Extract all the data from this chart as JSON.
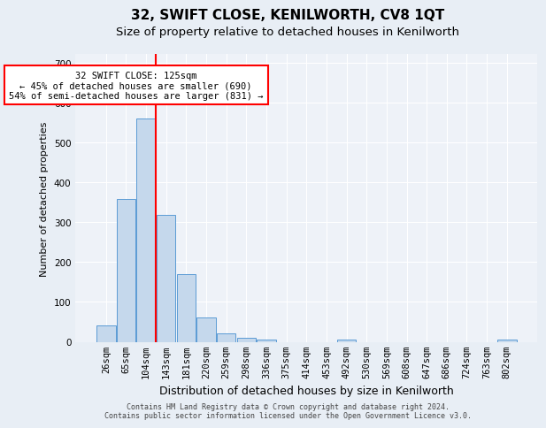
{
  "title": "32, SWIFT CLOSE, KENILWORTH, CV8 1QT",
  "subtitle": "Size of property relative to detached houses in Kenilworth",
  "xlabel": "Distribution of detached houses by size in Kenilworth",
  "ylabel": "Number of detached properties",
  "footer_line1": "Contains HM Land Registry data © Crown copyright and database right 2024.",
  "footer_line2": "Contains public sector information licensed under the Open Government Licence v3.0.",
  "bin_labels": [
    "26sqm",
    "65sqm",
    "104sqm",
    "143sqm",
    "181sqm",
    "220sqm",
    "259sqm",
    "298sqm",
    "336sqm",
    "375sqm",
    "414sqm",
    "453sqm",
    "492sqm",
    "530sqm",
    "569sqm",
    "608sqm",
    "647sqm",
    "686sqm",
    "724sqm",
    "763sqm",
    "802sqm"
  ],
  "bar_values": [
    40,
    358,
    560,
    318,
    170,
    62,
    22,
    10,
    6,
    0,
    0,
    0,
    5,
    0,
    0,
    0,
    0,
    0,
    0,
    0,
    5
  ],
  "bar_color": "#c5d8ec",
  "bar_edge_color": "#5b9bd5",
  "vline_color": "red",
  "annotation_text": "32 SWIFT CLOSE: 125sqm\n← 45% of detached houses are smaller (690)\n54% of semi-detached houses are larger (831) →",
  "annotation_box_color": "white",
  "annotation_box_edge": "red",
  "ylim": [
    0,
    720
  ],
  "yticks": [
    0,
    100,
    200,
    300,
    400,
    500,
    600,
    700
  ],
  "background_color": "#e8eef5",
  "plot_bg_color": "#eef2f8",
  "grid_color": "white",
  "title_fontsize": 11,
  "subtitle_fontsize": 9.5,
  "xlabel_fontsize": 9,
  "ylabel_fontsize": 8,
  "tick_fontsize": 7.5,
  "annotation_fontsize": 7.5,
  "footer_fontsize": 6
}
